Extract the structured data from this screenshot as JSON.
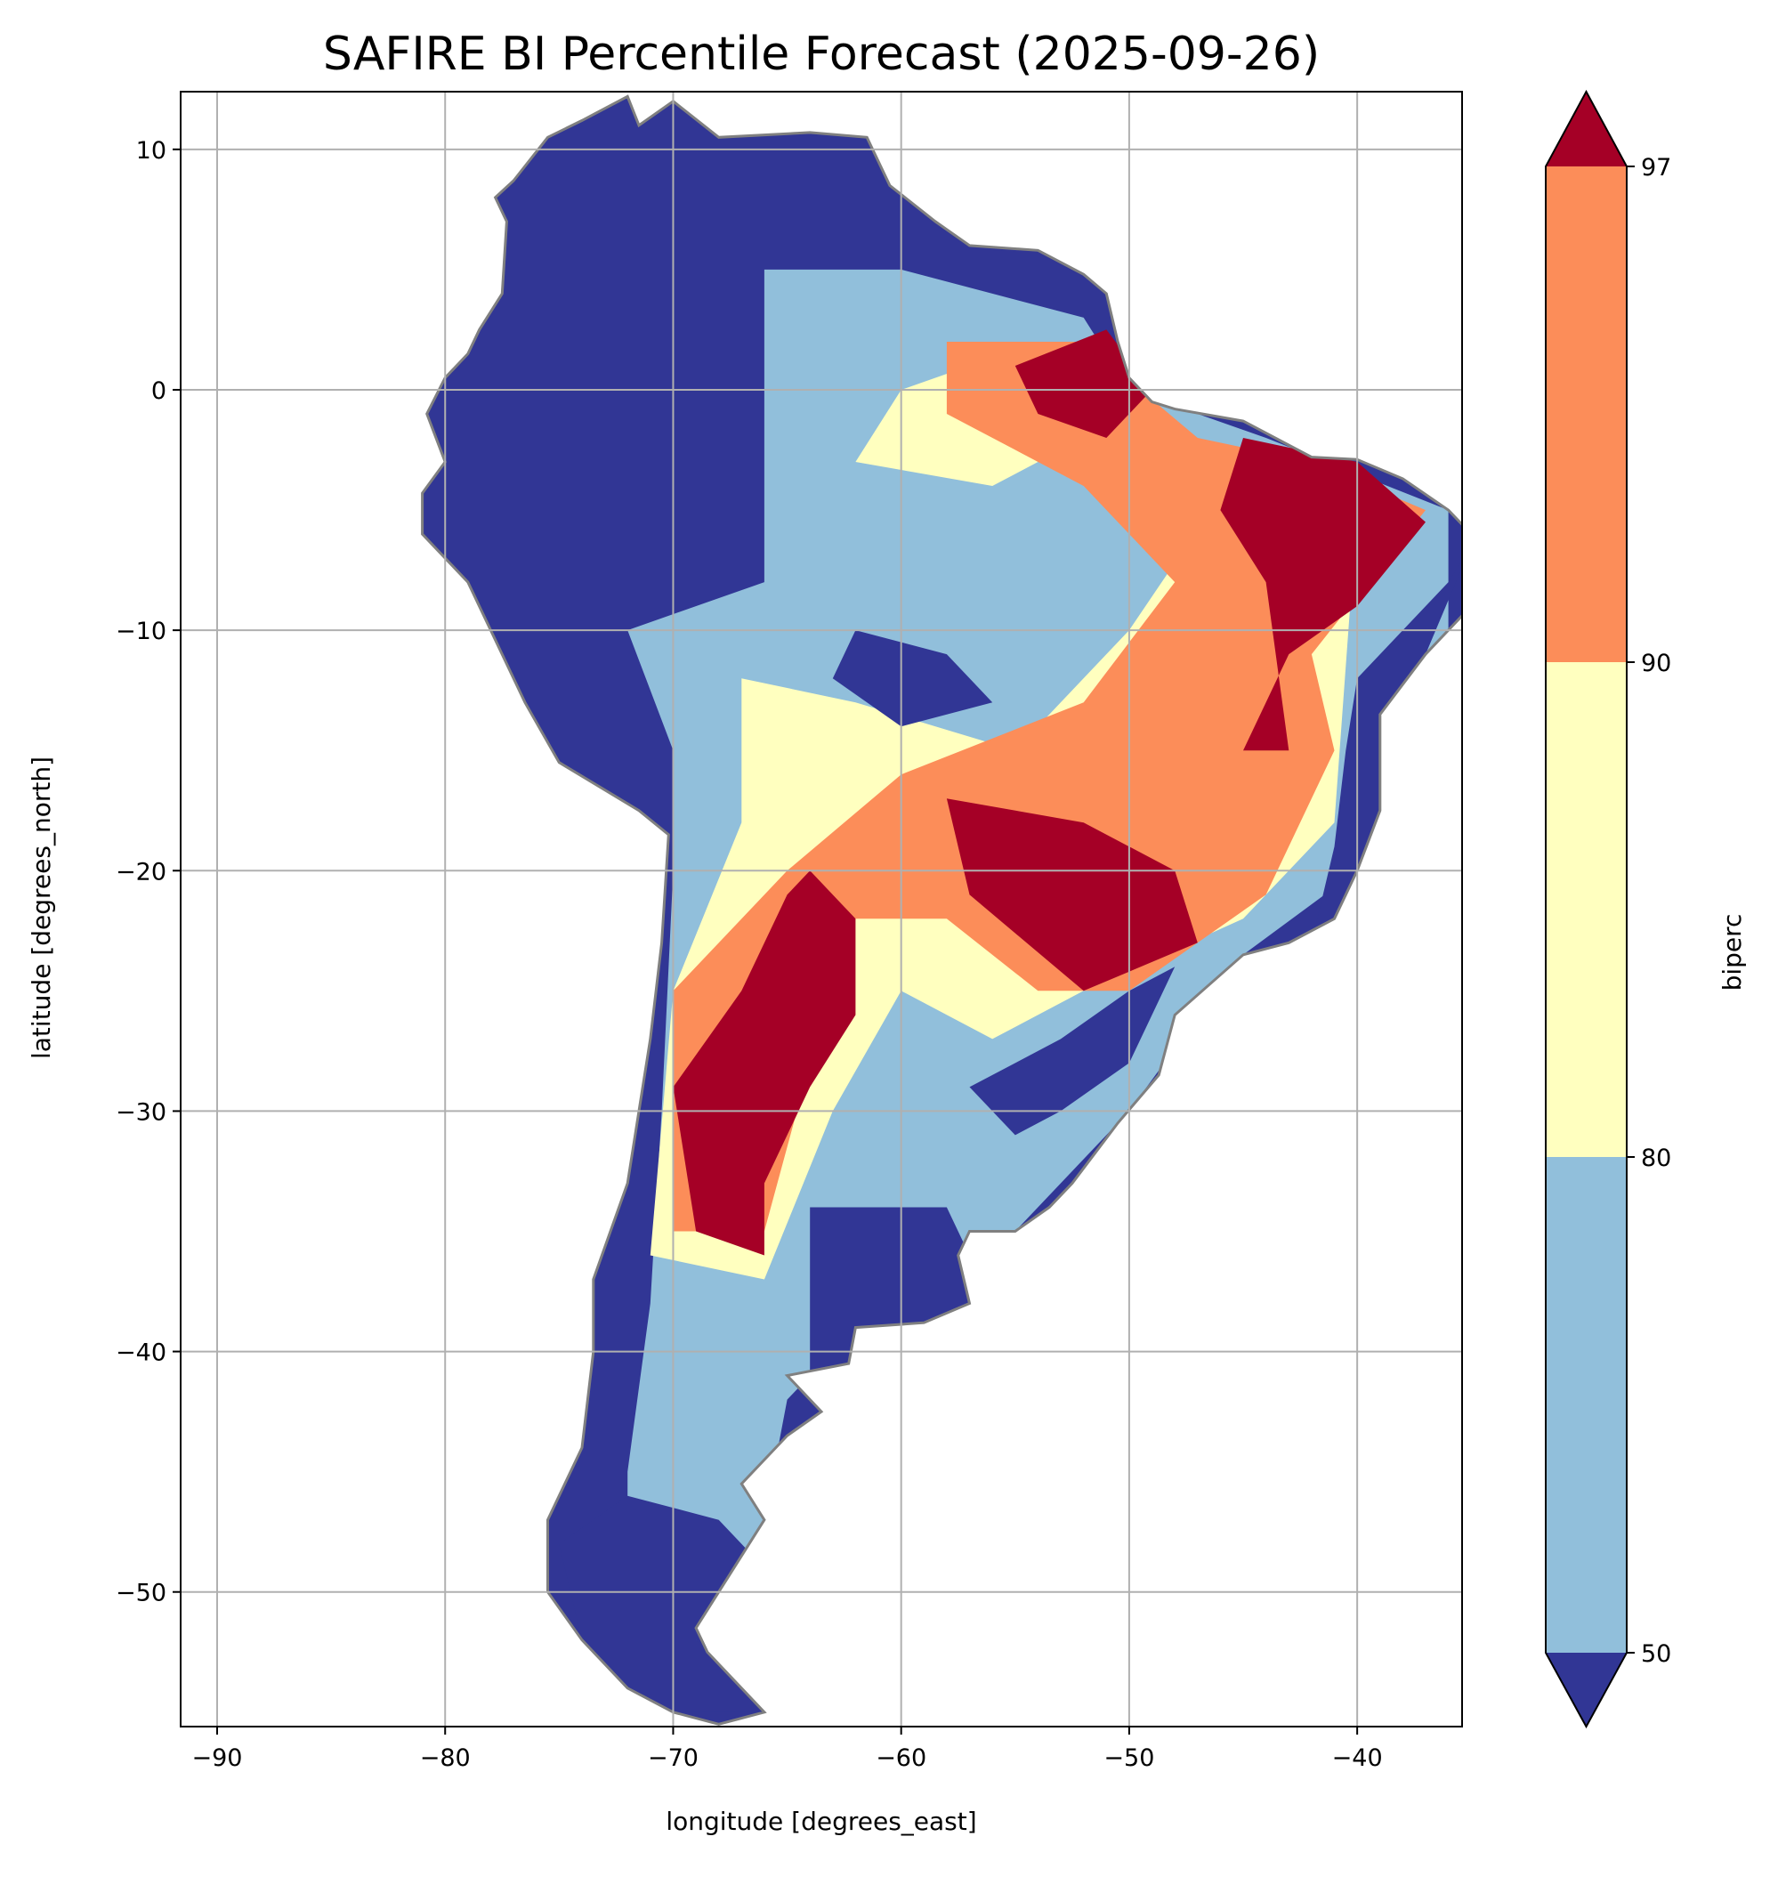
{
  "chart_data": {
    "type": "heatmap",
    "title": "SAFIRE BI Percentile Forecast (2025-09-26)",
    "xlabel": "longitude [degrees_east]",
    "ylabel": "latitude [degrees_north]",
    "xlim": [
      -91.6,
      -35.4
    ],
    "ylim": [
      -55.6,
      12.4
    ],
    "xticks": [
      -90,
      -80,
      -70,
      -60,
      -50,
      -40
    ],
    "yticks": [
      10,
      0,
      -10,
      -20,
      -30,
      -40,
      -50
    ],
    "xtick_labels": [
      "−90",
      "−80",
      "−70",
      "−60",
      "−50",
      "−40"
    ],
    "ytick_labels": [
      "10",
      "0",
      "−10",
      "−20",
      "−30",
      "−40",
      "−50"
    ],
    "grid": true,
    "colorbar": {
      "label": "biperc",
      "levels": [
        50,
        80,
        90,
        97
      ],
      "tick_labels": [
        "50",
        "80",
        "90",
        "97"
      ],
      "extend": "both",
      "colors": {
        "below_50": "#313695",
        "50_80": "#91bfdb",
        "80_90": "#ffffbf",
        "90_97": "#fc8d59",
        "above_97": "#a50026"
      },
      "placement": "right"
    },
    "coastline_color": "#808080",
    "grid_color": "#b0b0b0"
  }
}
